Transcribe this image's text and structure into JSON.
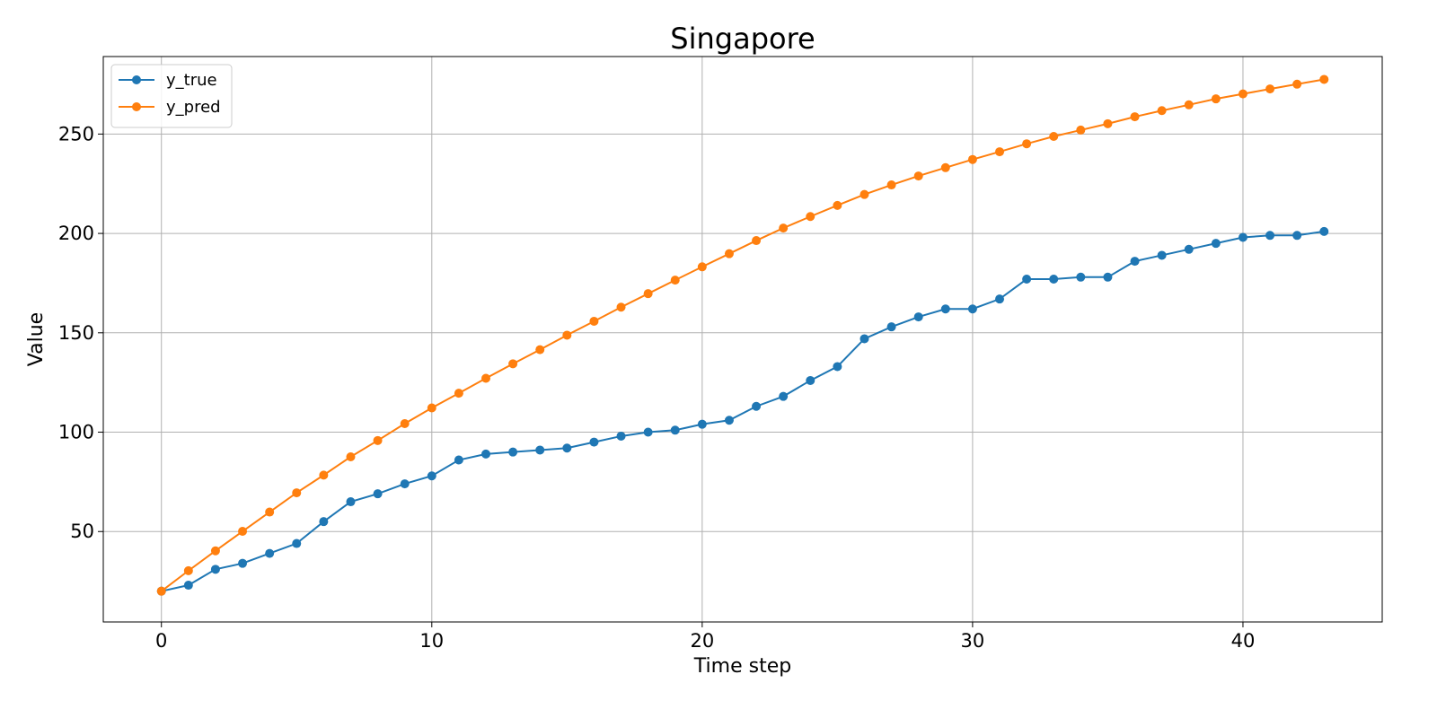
{
  "chart_data": {
    "type": "line",
    "title": "Singapore",
    "xlabel": "Time step",
    "ylabel": "Value",
    "xlim": [
      -2.15,
      45.15
    ],
    "ylim": [
      4.5,
      289
    ],
    "xticks": [
      0,
      10,
      20,
      30,
      40
    ],
    "yticks": [
      50,
      100,
      150,
      200,
      250
    ],
    "grid": true,
    "legend_position": "upper-left",
    "x": [
      0,
      1,
      2,
      3,
      4,
      5,
      6,
      7,
      8,
      9,
      10,
      11,
      12,
      13,
      14,
      15,
      16,
      17,
      18,
      19,
      20,
      21,
      22,
      23,
      24,
      25,
      26,
      27,
      28,
      29,
      30,
      31,
      32,
      33,
      34,
      35,
      36,
      37,
      38,
      39,
      40,
      41,
      42,
      43
    ],
    "series": [
      {
        "name": "y_true",
        "color": "#1f77b4",
        "marker": "circle",
        "values": [
          20,
          23,
          31,
          34,
          39,
          44,
          55,
          65,
          69,
          74,
          78,
          86,
          89,
          90,
          91,
          92,
          95,
          98,
          100,
          101,
          104,
          106,
          113,
          118,
          126,
          133,
          147,
          153,
          158,
          162,
          162,
          167,
          177,
          177,
          178,
          178,
          186,
          189,
          192,
          195,
          198,
          199,
          199,
          201
        ]
      },
      {
        "name": "y_pred",
        "color": "#ff7f0e",
        "marker": "circle",
        "values": [
          20,
          30.3,
          40.3,
          50.1,
          59.8,
          69.5,
          78.4,
          87.6,
          95.8,
          104.3,
          112.2,
          119.6,
          127.1,
          134.4,
          141.5,
          148.8,
          155.8,
          162.9,
          169.7,
          176.5,
          183.2,
          189.8,
          196.4,
          202.7,
          208.5,
          214.1,
          219.6,
          224.4,
          228.9,
          233.1,
          237.2,
          241.1,
          245.1,
          248.8,
          252,
          255.2,
          258.7,
          261.8,
          264.7,
          267.7,
          270.2,
          272.7,
          275.1,
          277.5
        ]
      }
    ]
  }
}
